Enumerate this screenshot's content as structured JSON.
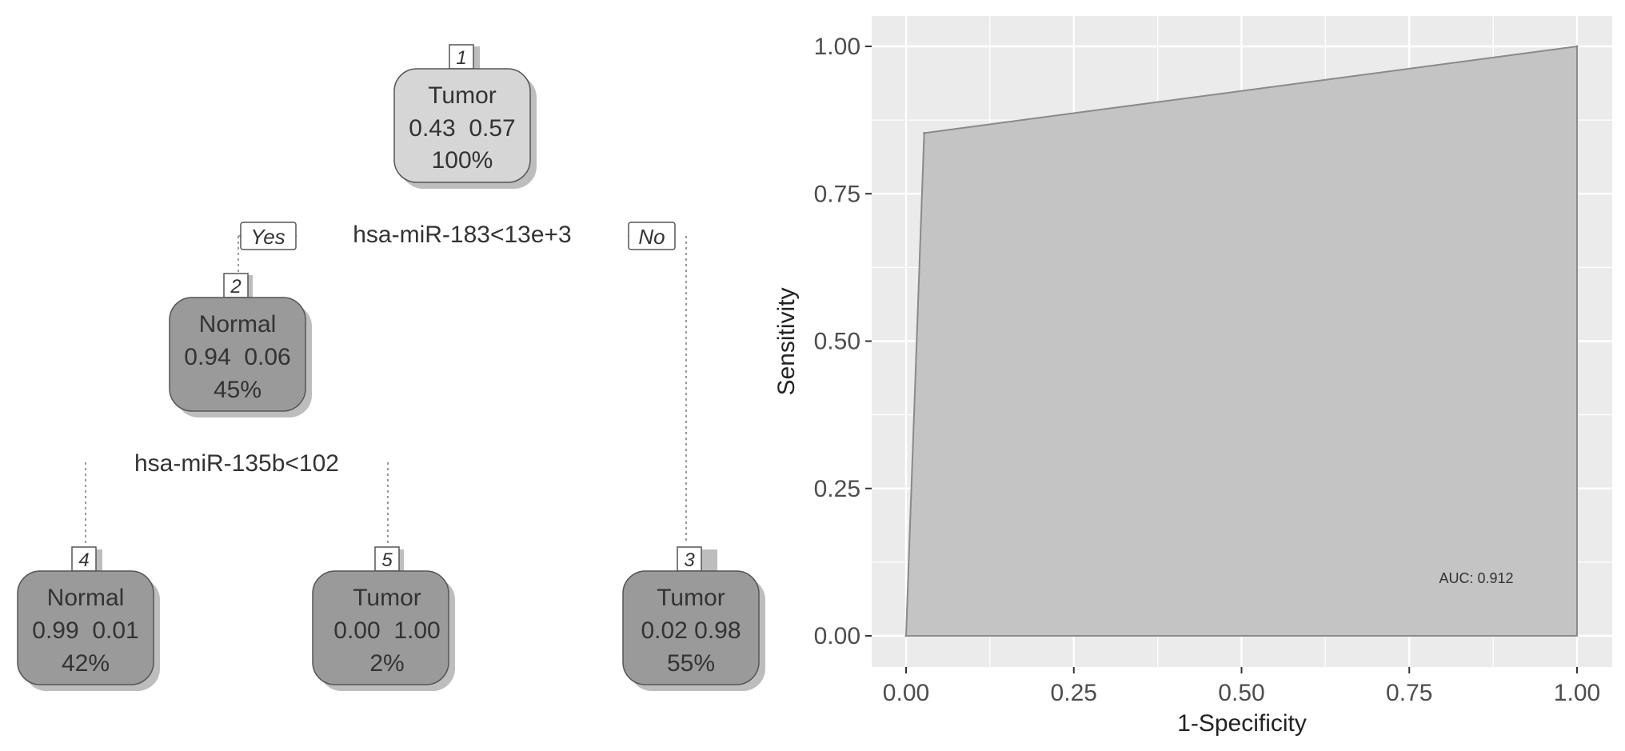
{
  "chart_data": [
    {
      "type": "tree",
      "nodes": [
        {
          "id": "1",
          "label": "Tumor",
          "probs": "0.43  0.57",
          "pct": "100%"
        },
        {
          "id": "2",
          "label": "Normal",
          "probs": "0.94  0.06",
          "pct": "45%"
        },
        {
          "id": "3",
          "label": "Tumor",
          "probs": "0.02 0.98",
          "pct": "55%"
        },
        {
          "id": "4",
          "label": "Normal",
          "probs": "0.99  0.01",
          "pct": "42%"
        },
        {
          "id": "5",
          "label": "Tumor",
          "probs": "0.00  1.00",
          "pct": "2%"
        }
      ],
      "splits": [
        {
          "node": "1",
          "rule": "hsa-miR-183<13e+3",
          "yes": "Yes",
          "no": "No"
        },
        {
          "node": "2",
          "rule": "hsa-miR-135b<102"
        }
      ],
      "colors": {
        "root_fill": "#d6d6d6",
        "node_fill": "#9a9a9a",
        "shadow": "#bdbdbd"
      }
    },
    {
      "type": "area",
      "title": "",
      "xlabel": "1-Specificity",
      "ylabel": "Sensitivity",
      "xlim": [
        0,
        1
      ],
      "ylim": [
        0,
        1
      ],
      "x_ticks": [
        "0.00",
        "0.25",
        "0.50",
        "0.75",
        "1.00"
      ],
      "y_ticks": [
        "0.00",
        "0.25",
        "0.50",
        "0.75",
        "1.00"
      ],
      "series": [
        {
          "x": [
            0,
            0.027,
            1
          ],
          "y": [
            0,
            0.853,
            1
          ]
        }
      ],
      "annotation": "AUC: 0.912",
      "grid": true,
      "colors": {
        "panel": "#ebebeb",
        "fill": "#c4c4c4",
        "line": "#8a8a8a",
        "grid": "#ffffff"
      }
    }
  ]
}
